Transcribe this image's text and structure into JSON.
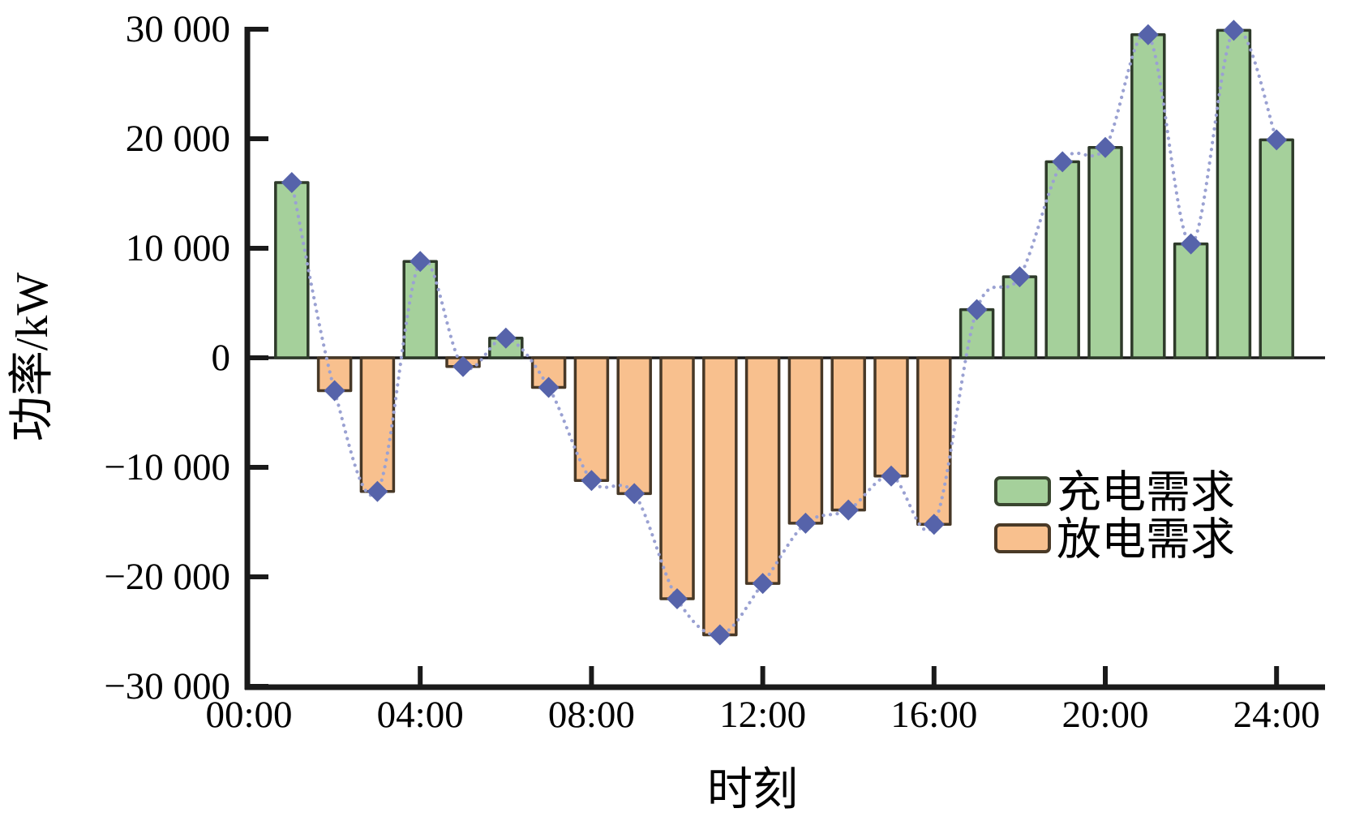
{
  "figure": {
    "background": "#ffffff"
  },
  "legend": {
    "position": "center-right",
    "items": [
      {
        "label": "充电需求",
        "series": "charging",
        "fill": "#a5d09b",
        "stroke": "#39462f"
      },
      {
        "label": "放电需求",
        "series": "discharging",
        "fill": "#f8c08e",
        "stroke": "#4a3a27"
      }
    ]
  },
  "chart_data": {
    "type": "bar",
    "title": "",
    "xlabel": "时刻",
    "ylabel": "功率/kW",
    "x_hours": [
      1,
      2,
      3,
      4,
      5,
      6,
      7,
      8,
      9,
      10,
      11,
      12,
      13,
      14,
      15,
      16,
      17,
      18,
      19,
      20,
      21,
      22,
      23,
      24
    ],
    "values_kw": [
      16000,
      -3000,
      -12200,
      8800,
      -800,
      1800,
      -2700,
      -11200,
      -12400,
      -22000,
      -25300,
      -20600,
      -15100,
      -13900,
      -10800,
      -15200,
      4400,
      7400,
      17900,
      19200,
      29500,
      10400,
      29900,
      19900
    ],
    "bar_color_rule": {
      "positive_series": "充电需求",
      "negative_series": "放电需求"
    },
    "line_overlay": {
      "style": "dotted",
      "marker": "diamond",
      "follows": "values_kw"
    },
    "x_ticks": {
      "hours": [
        0,
        4,
        8,
        12,
        16,
        20,
        24
      ],
      "labels": [
        "00:00",
        "04:00",
        "08:00",
        "12:00",
        "16:00",
        "20:00",
        "24:00"
      ]
    },
    "y_ticks": {
      "values": [
        30000,
        20000,
        10000,
        0,
        -10000,
        -20000,
        -30000
      ],
      "labels": [
        "30 000",
        "20 000",
        "10 000",
        "0",
        "−10 000",
        "−20 000",
        "−30 000"
      ]
    },
    "ylim": [
      -30000,
      30000
    ],
    "xlim_hours": [
      0,
      25.1
    ],
    "grid": false,
    "legend_position": "center-right"
  },
  "colors": {
    "charging_fill": "#a5d09b",
    "charging_stroke": "#2e3a2a",
    "discharging_fill": "#f8c08e",
    "discharging_stroke": "#473827",
    "curve_line": "#9aa1d2",
    "curve_marker": "#5663aa",
    "axis": "#1a1a1a",
    "text": "#000000"
  }
}
